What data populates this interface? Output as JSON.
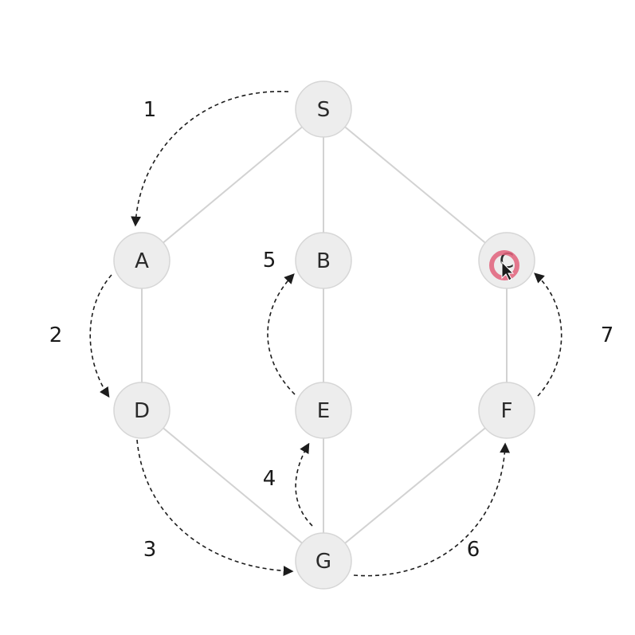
{
  "diagram": {
    "nodes": [
      {
        "id": "S",
        "label": "S"
      },
      {
        "id": "A",
        "label": "A"
      },
      {
        "id": "B",
        "label": "B"
      },
      {
        "id": "C",
        "label": "C"
      },
      {
        "id": "D",
        "label": "D"
      },
      {
        "id": "E",
        "label": "E"
      },
      {
        "id": "F",
        "label": "F"
      },
      {
        "id": "G",
        "label": "G"
      }
    ],
    "edges": [
      [
        "S",
        "A"
      ],
      [
        "S",
        "B"
      ],
      [
        "S",
        "C"
      ],
      [
        "A",
        "D"
      ],
      [
        "B",
        "E"
      ],
      [
        "C",
        "F"
      ],
      [
        "D",
        "G"
      ],
      [
        "E",
        "G"
      ],
      [
        "F",
        "G"
      ]
    ],
    "traversal_steps": [
      {
        "number": "1",
        "from": "S",
        "to": "A"
      },
      {
        "number": "2",
        "from": "A",
        "to": "D"
      },
      {
        "number": "3",
        "from": "D",
        "to": "G"
      },
      {
        "number": "4",
        "from": "G",
        "to": "E"
      },
      {
        "number": "5",
        "from": "E",
        "to": "B"
      },
      {
        "number": "6",
        "from": "G",
        "to": "F"
      },
      {
        "number": "7",
        "from": "F",
        "to": "C"
      }
    ],
    "highlighted_node": "C",
    "colors": {
      "node_fill": "#ededed",
      "edge": "#d2d2d2",
      "arrow": "#1c1c1c",
      "click_highlight": "#e0607a"
    }
  }
}
